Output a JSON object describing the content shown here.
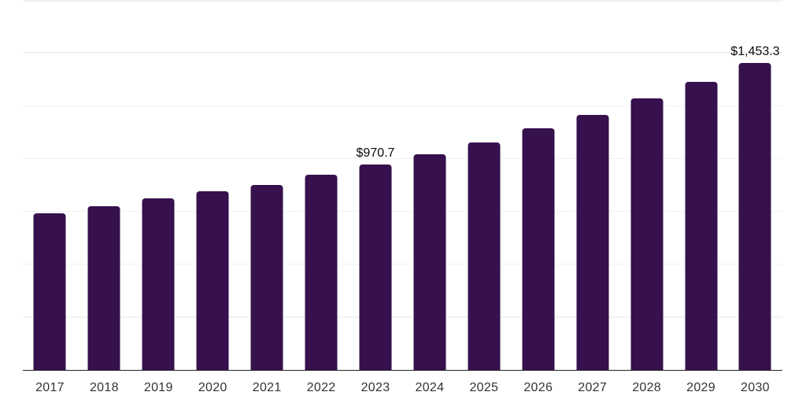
{
  "chart_data": {
    "type": "bar",
    "title": "",
    "xlabel": "",
    "ylabel": "",
    "categories": [
      "2017",
      "2018",
      "2019",
      "2020",
      "2021",
      "2022",
      "2023",
      "2024",
      "2025",
      "2026",
      "2027",
      "2028",
      "2029",
      "2030"
    ],
    "values": [
      740,
      773,
      812,
      845,
      874,
      922,
      970.7,
      1019,
      1076,
      1142,
      1208,
      1286,
      1363,
      1453.3
    ],
    "data_labels": [
      {
        "index": 6,
        "text": "$970.7"
      },
      {
        "index": 13,
        "text": "$1,453.3"
      }
    ],
    "ylim": [
      0,
      1750
    ],
    "gridline_values": [
      250,
      500,
      750,
      1000,
      1250,
      1500,
      1750
    ],
    "grid": "horizontal-only",
    "legend": "none",
    "y_tick_labels": "none",
    "bar_color": "#36114d",
    "axis_line_color": "#222222",
    "gridline_color": "#f1f1f3",
    "tick_label_color": "#333333",
    "data_label_color": "#0a0a0a"
  }
}
